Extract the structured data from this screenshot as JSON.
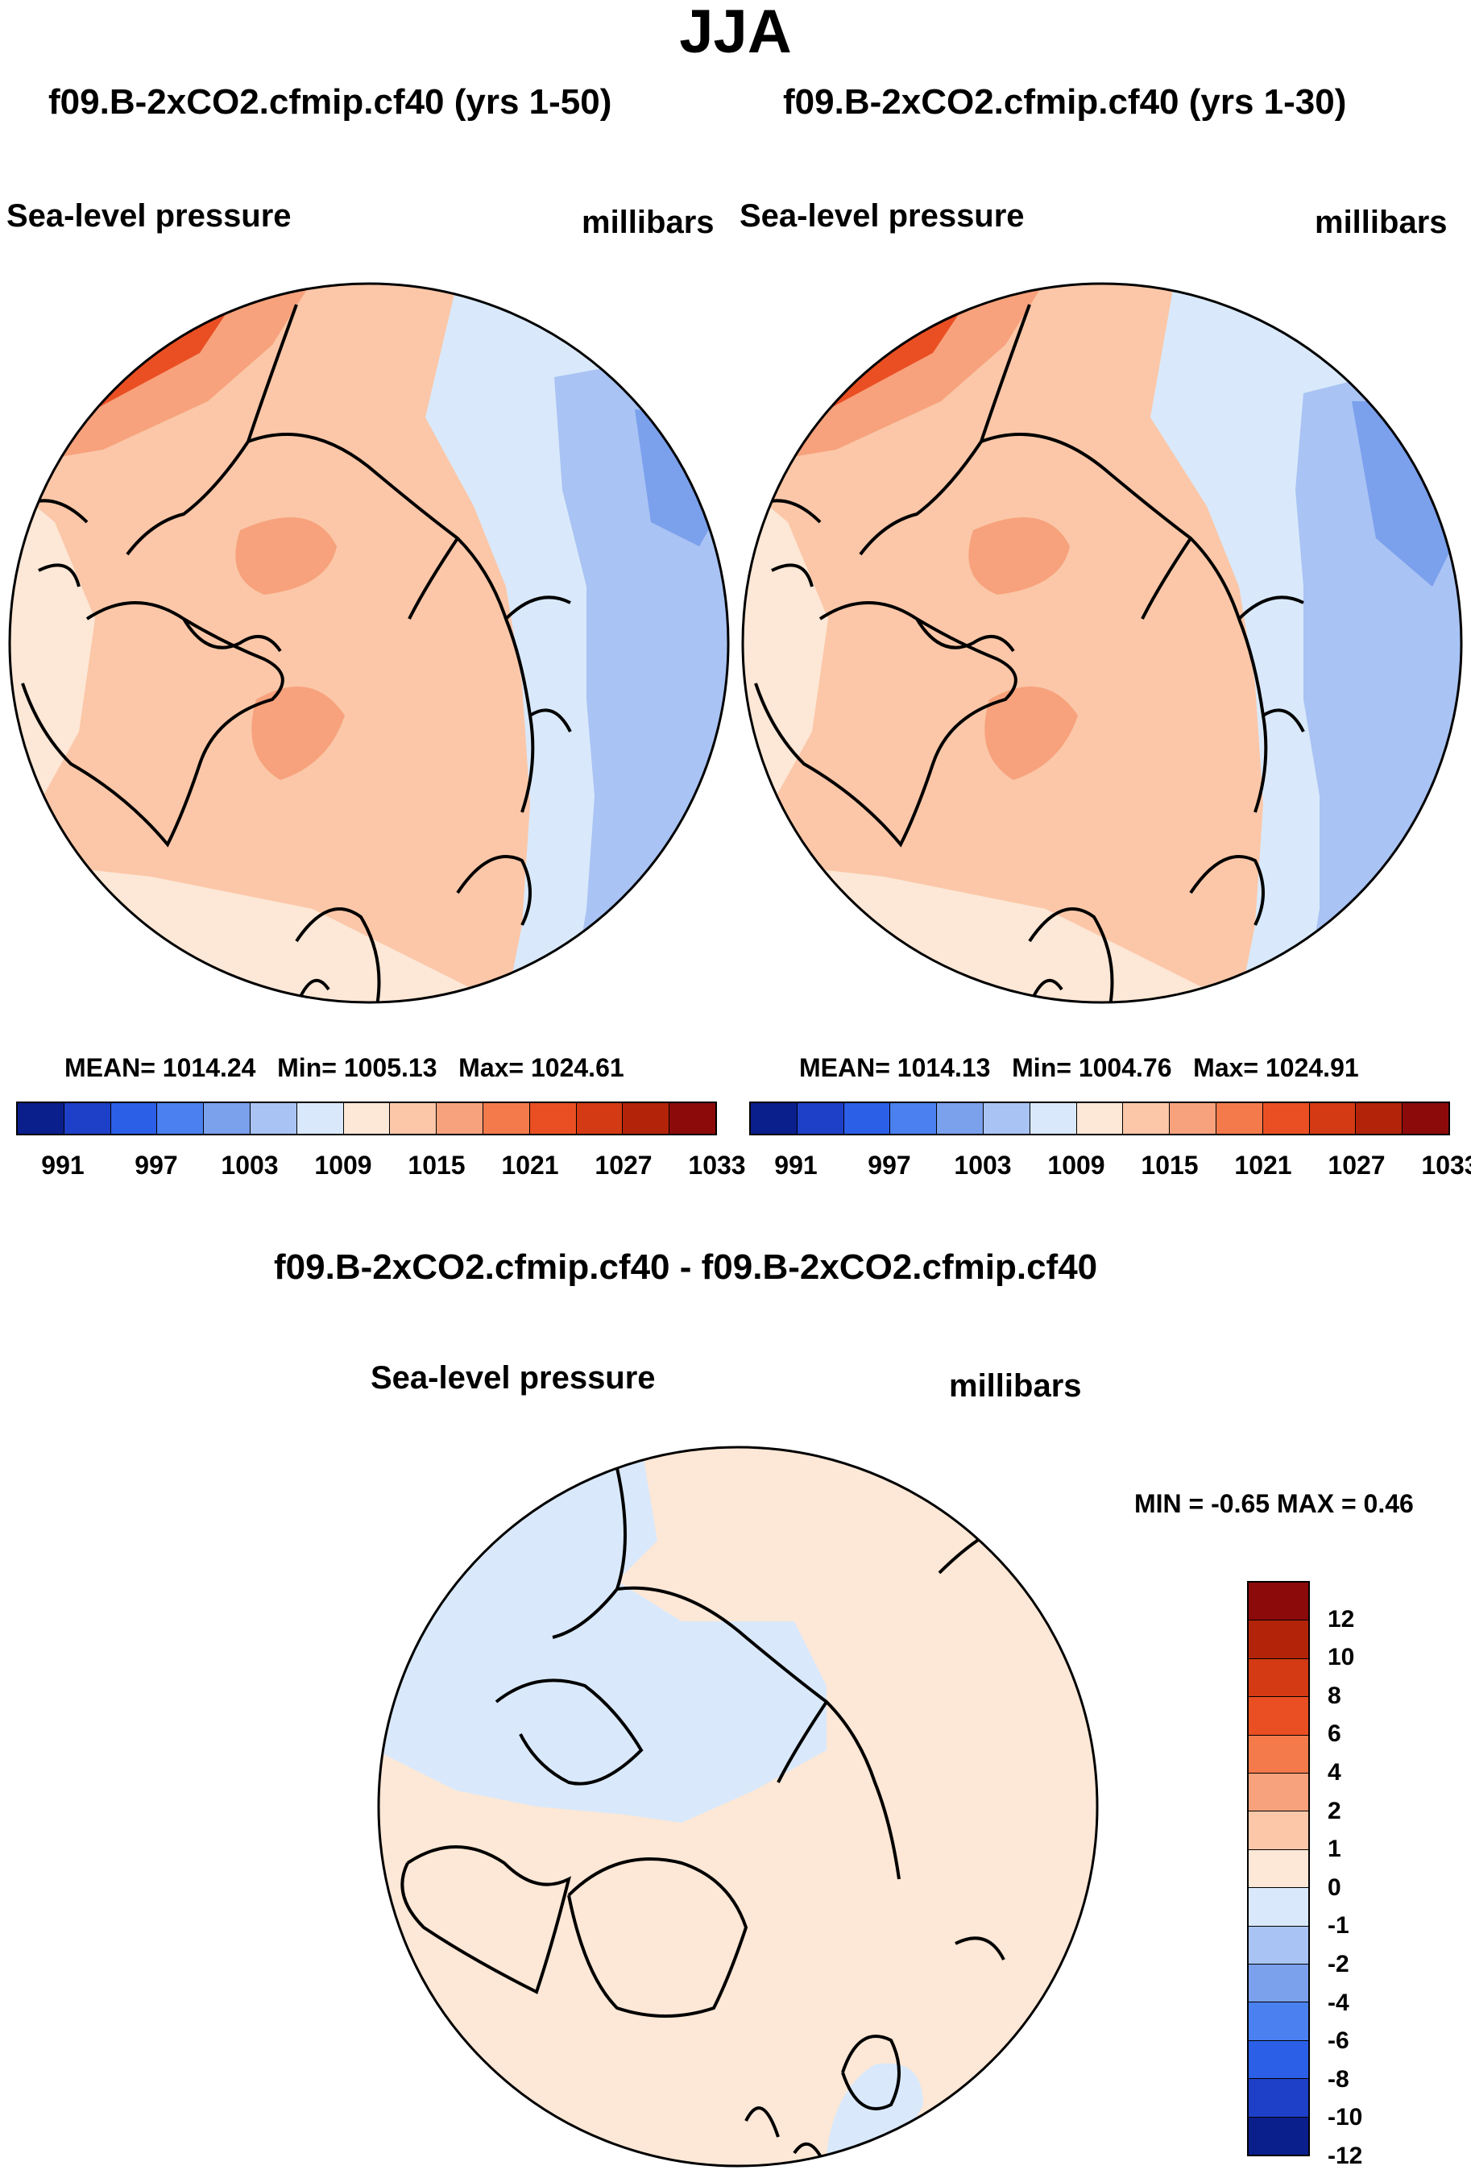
{
  "title": "JJA",
  "panels": [
    {
      "case_title": "f09.B-2xCO2.cfmip.cf40 (yrs 1-50)",
      "field_label": "Sea-level pressure",
      "units": "millibars",
      "stats": {
        "mean_label": "MEAN=",
        "mean": "1014.24",
        "min_label": "Min=",
        "min": "1005.13",
        "max_label": "Max=",
        "max": "1024.61"
      }
    },
    {
      "case_title": "f09.B-2xCO2.cfmip.cf40 (yrs 1-30)",
      "field_label": "Sea-level pressure",
      "units": "millibars",
      "stats": {
        "mean_label": "MEAN=",
        "mean": "1014.13",
        "min_label": "Min=",
        "min": "1004.76",
        "max_label": "Max=",
        "max": "1024.91"
      }
    }
  ],
  "colorbar_h": {
    "colors": [
      "#0a1e8c",
      "#1e3fc8",
      "#2c5fe8",
      "#4a80f0",
      "#7ba0ec",
      "#a9c3f4",
      "#d9e9fb",
      "#fde7d6",
      "#fbc7a8",
      "#f7a27c",
      "#f47a4c",
      "#ea4f23",
      "#d43a14",
      "#b3230a",
      "#8c0a0a"
    ],
    "ticks": [
      "991",
      "997",
      "1003",
      "1009",
      "1015",
      "1021",
      "1027",
      "1033"
    ]
  },
  "diff": {
    "title": "f09.B-2xCO2.cfmip.cf40 - f09.B-2xCO2.cfmip.cf40",
    "field_label": "Sea-level pressure",
    "units": "millibars",
    "minmax": "MIN =  -0.65 MAX =   0.46",
    "colorbar": {
      "colors": [
        "#8c0a0a",
        "#b3230a",
        "#d43a14",
        "#ea4f23",
        "#f47a4c",
        "#f7a27c",
        "#fbc7a8",
        "#fde7d6",
        "#d9e9fb",
        "#a9c3f4",
        "#7ba0ec",
        "#4a80f0",
        "#2c5fe8",
        "#1e3fc8",
        "#0a1e8c"
      ],
      "ticks": [
        "12",
        "10",
        "8",
        "6",
        "4",
        "2",
        "1",
        "0",
        "-1",
        "-2",
        "-4",
        "-6",
        "-8",
        "-10",
        "-12"
      ]
    }
  },
  "map_colors": {
    "ocean_high": "#f7a27c",
    "mid": "#fbc7a8",
    "low": "#fde7d6",
    "blue1": "#d9e9fb",
    "blue2": "#a9c3f4",
    "blue3": "#7ba0ec",
    "red_strong": "#ea4f23",
    "diff_bg": "#fde7d6",
    "diff_neg": "#d9e9fb"
  }
}
